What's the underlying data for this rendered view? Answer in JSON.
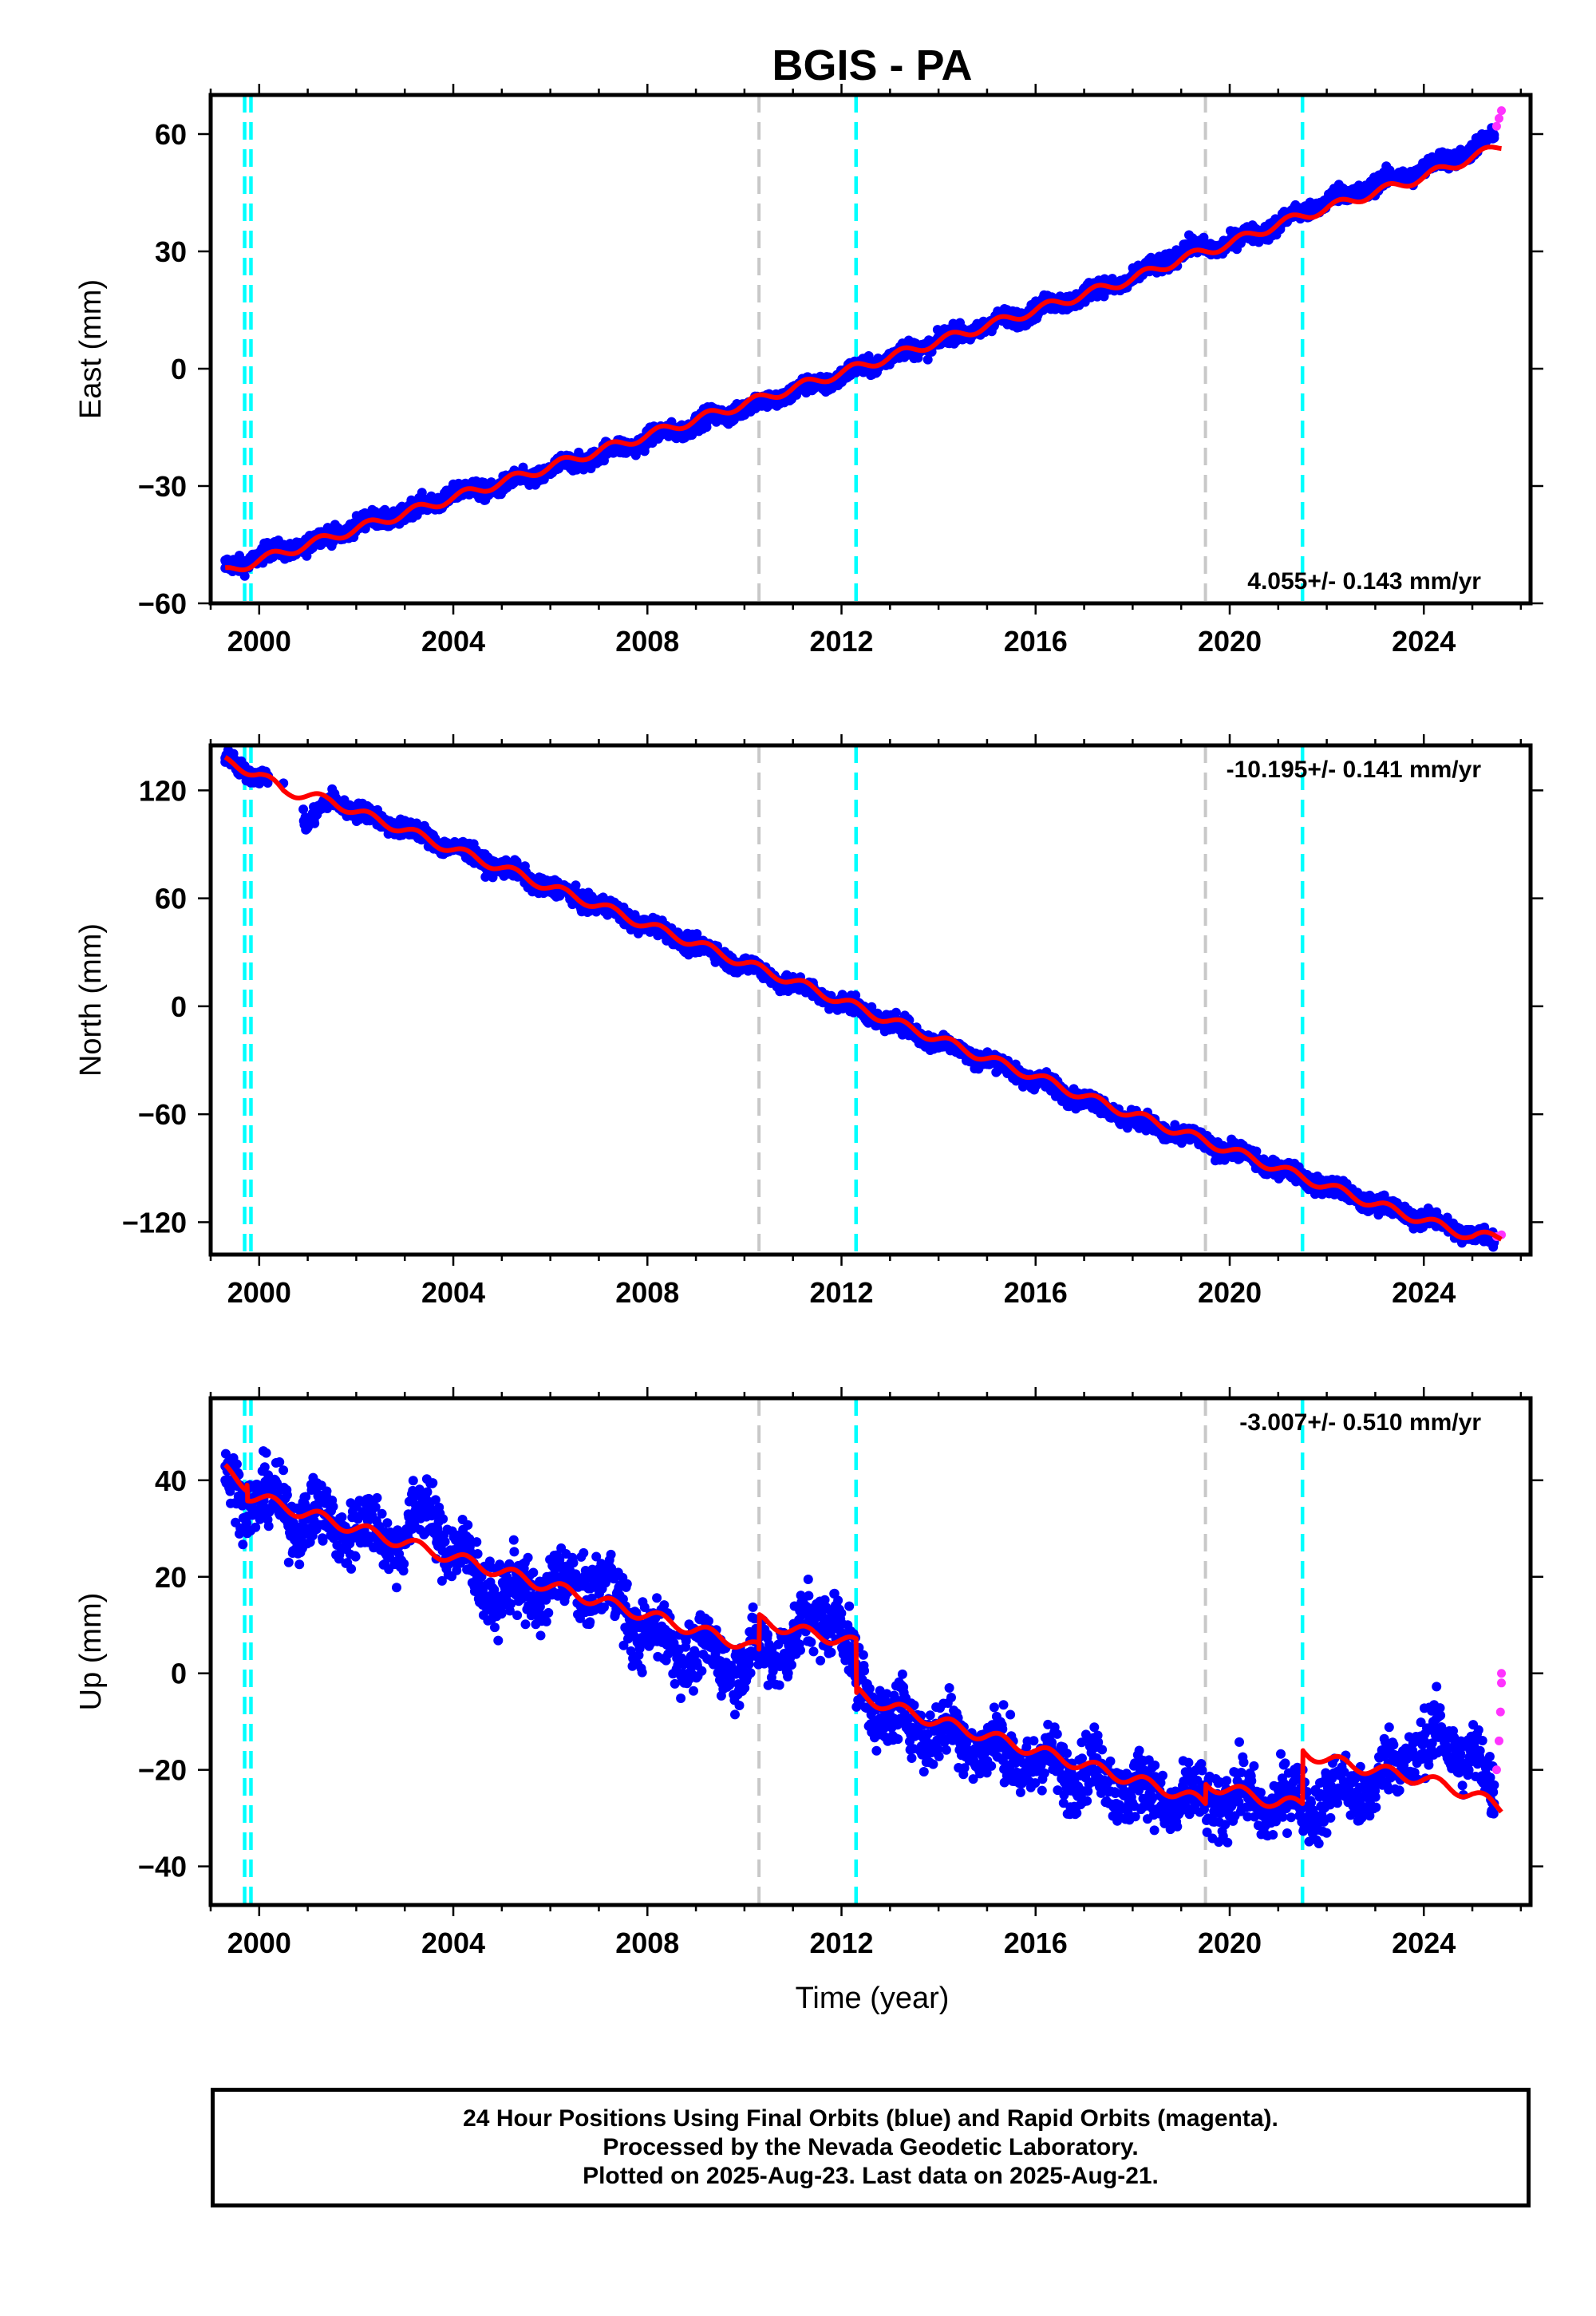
{
  "title": "BGIS - PA",
  "xlabel": "Time (year)",
  "colors": {
    "final_orbits": "#0000ff",
    "rapid_orbits": "#ff33ff",
    "model": "#ff0000",
    "equipment_change": "#c8c8c8",
    "earthquake": "#00ffff"
  },
  "events": {
    "gray_dashed": [
      2010.3,
      2019.5
    ],
    "cyan_dashed": [
      1999.7,
      1999.83,
      2012.3,
      2021.5
    ]
  },
  "chart_data": [
    {
      "type": "scatter",
      "name": "east",
      "ylabel": "East (mm)",
      "xlim": [
        1999.0,
        2026.2
      ],
      "ylim": [
        -60,
        70
      ],
      "x_ticks": [
        2000,
        2004,
        2008,
        2012,
        2016,
        2020,
        2024
      ],
      "y_ticks": [
        -60,
        -30,
        0,
        30,
        60
      ],
      "y_tick_labels": [
        "−60",
        "−30",
        "0",
        "30",
        "60"
      ],
      "rate_label": "4.055+/- 0.143 mm/yr",
      "rate_position": "bottom-right",
      "series": [
        {
          "series_role": "final",
          "style": "blue dots",
          "x": [
            1999.3,
            2000.0,
            2001.0,
            2002.0,
            2003.0,
            2004.0,
            2005.0,
            2006.0,
            2007.0,
            2008.0,
            2009.0,
            2010.0,
            2011.0,
            2012.0,
            2013.0,
            2014.0,
            2015.0,
            2016.0,
            2017.0,
            2018.0,
            2019.0,
            2020.0,
            2021.0,
            2022.0,
            2023.0,
            2024.0,
            2025.0,
            2025.45
          ],
          "y": [
            -51,
            -48,
            -45,
            -40,
            -37,
            -32,
            -30,
            -26,
            -22,
            -18,
            -14,
            -10,
            -6,
            -2,
            3,
            7,
            11,
            15,
            19,
            23,
            30,
            32,
            37,
            43,
            47,
            51,
            56,
            59
          ]
        },
        {
          "series_role": "rapid",
          "style": "magenta dots",
          "x": [
            2025.5,
            2025.55,
            2025.6
          ],
          "y": [
            62,
            64,
            66
          ]
        },
        {
          "series_role": "model",
          "style": "red line",
          "x": [
            1999.3,
            2000.0,
            2001.0,
            2002.0,
            2003.0,
            2004.0,
            2005.0,
            2006.0,
            2007.0,
            2008.0,
            2009.0,
            2010.0,
            2011.0,
            2012.0,
            2013.0,
            2014.0,
            2015.0,
            2016.0,
            2017.0,
            2018.0,
            2019.0,
            2020.0,
            2021.0,
            2022.0,
            2023.0,
            2024.0,
            2025.0,
            2025.6
          ],
          "y": [
            -52,
            -49,
            -45,
            -41,
            -37,
            -33,
            -29,
            -25,
            -21,
            -17,
            -13,
            -9,
            -5,
            -1,
            3,
            7,
            11,
            15,
            19,
            23,
            28,
            32,
            37,
            41,
            45,
            49,
            54,
            57
          ]
        }
      ]
    },
    {
      "type": "scatter",
      "name": "north",
      "ylabel": "North (mm)",
      "xlim": [
        1999.0,
        2026.2
      ],
      "ylim": [
        -138,
        145
      ],
      "x_ticks": [
        2000,
        2004,
        2008,
        2012,
        2016,
        2020,
        2024
      ],
      "y_ticks": [
        -120,
        -60,
        0,
        60,
        120
      ],
      "y_tick_labels": [
        "−120",
        "−60",
        "0",
        "60",
        "120"
      ],
      "rate_label": "-10.195+/- 0.141 mm/yr",
      "rate_position": "top-right",
      "series": [
        {
          "series_role": "final",
          "style": "blue dots",
          "x": [
            1999.3,
            1999.6,
            2000.0,
            2000.5,
            2001.0,
            2001.5,
            2002.0,
            2003.0,
            2004.0,
            2005.0,
            2006.0,
            2007.0,
            2008.0,
            2009.0,
            2010.0,
            2011.0,
            2012.0,
            2013.0,
            2014.0,
            2015.0,
            2016.0,
            2017.0,
            2018.0,
            2019.0,
            2020.0,
            2021.0,
            2022.0,
            2023.0,
            2024.0,
            2025.0,
            2025.45
          ],
          "y": [
            138,
            133,
            128,
            124,
            100,
            116,
            108,
            99,
            88,
            77,
            66,
            56,
            45,
            34,
            23,
            12,
            2,
            -9,
            -20,
            -30,
            -41,
            -52,
            -63,
            -72,
            -80,
            -90,
            -100,
            -110,
            -118,
            -127,
            -130
          ]
        },
        {
          "series_role": "rapid",
          "style": "magenta dots",
          "x": [
            2025.5,
            2025.6
          ],
          "y": [
            -128,
            -127
          ]
        },
        {
          "series_role": "model",
          "style": "red line",
          "x": [
            1999.3,
            2000.0,
            2000.5,
            2001.5,
            2002.0,
            2003.0,
            2004.0,
            2005.0,
            2006.0,
            2007.0,
            2008.0,
            2009.0,
            2010.0,
            2011.0,
            2012.0,
            2013.0,
            2014.0,
            2015.0,
            2016.0,
            2017.0,
            2018.0,
            2019.0,
            2020.0,
            2021.0,
            2022.0,
            2023.0,
            2024.0,
            2025.0,
            2025.6
          ],
          "y": [
            136,
            129,
            120,
            114,
            108,
            98,
            87,
            77,
            66,
            56,
            45,
            35,
            24,
            14,
            3,
            -8,
            -18,
            -29,
            -39,
            -50,
            -60,
            -70,
            -80,
            -90,
            -100,
            -110,
            -119,
            -128,
            -128
          ]
        }
      ]
    },
    {
      "type": "scatter",
      "name": "up",
      "ylabel": "Up (mm)",
      "xlim": [
        1999.0,
        2026.2
      ],
      "ylim": [
        -48,
        57
      ],
      "x_ticks": [
        2000,
        2004,
        2008,
        2012,
        2016,
        2020,
        2024
      ],
      "y_ticks": [
        -40,
        -20,
        0,
        20,
        40
      ],
      "y_tick_labels": [
        "−40",
        "−20",
        "0",
        "20",
        "40"
      ],
      "x_tick_labels_shown": true,
      "rate_label": "-3.007+/- 0.510 mm/yr",
      "rate_position": "top-right",
      "series": [
        {
          "series_role": "final",
          "style": "blue dots",
          "x": [
            1999.3,
            2000.0,
            2001.0,
            2002.0,
            2003.0,
            2003.5,
            2004.0,
            2005.0,
            2006.0,
            2007.0,
            2008.0,
            2009.0,
            2010.0,
            2011.0,
            2011.9,
            2012.3,
            2013.0,
            2014.0,
            2015.0,
            2016.0,
            2017.0,
            2018.0,
            2019.0,
            2020.0,
            2021.0,
            2022.0,
            2023.0,
            2024.0,
            2025.0,
            2025.45
          ],
          "y": [
            40,
            36,
            32,
            30,
            28,
            35,
            25,
            16,
            18,
            19,
            8,
            4,
            2,
            7,
            14,
            -2,
            -9,
            -12,
            -15,
            -19,
            -20,
            -24,
            -27,
            -26,
            -27,
            -26,
            -23,
            -14,
            -16,
            -27
          ]
        },
        {
          "series_role": "rapid",
          "style": "magenta dots",
          "x": [
            2025.5,
            2025.55,
            2025.58,
            2025.6,
            2025.6
          ],
          "y": [
            -20,
            -14,
            -8,
            -2,
            0
          ]
        },
        {
          "series_role": "model",
          "style": "red line",
          "x": [
            1999.3,
            1999.75,
            1999.76,
            2001.0,
            2002.0,
            2003.0,
            2004.0,
            2005.0,
            2006.0,
            2007.0,
            2008.0,
            2009.0,
            2010.0,
            2010.3,
            2010.31,
            2011.0,
            2012.0,
            2012.3,
            2012.31,
            2013.0,
            2014.0,
            2015.0,
            2016.0,
            2017.0,
            2018.0,
            2019.0,
            2019.5,
            2019.51,
            2020.0,
            2021.0,
            2021.5,
            2021.51,
            2022.0,
            2023.0,
            2024.0,
            2025.0,
            2025.6
          ],
          "y": [
            42,
            39,
            37,
            33,
            30,
            27,
            24,
            21,
            18,
            15,
            12,
            9,
            6,
            5,
            11,
            9,
            7,
            6,
            -4,
            -7,
            -10,
            -13,
            -16,
            -19,
            -22,
            -25,
            -27,
            -23,
            -24,
            -27,
            -27,
            -16,
            -18,
            -20,
            -22,
            -25,
            -28
          ]
        }
      ]
    }
  ],
  "caption": {
    "line1": "24 Hour Positions Using Final Orbits (blue) and Rapid Orbits (magenta).",
    "line2": "Processed by the Nevada Geodetic Laboratory.",
    "line3": "Plotted on 2025-Aug-23. Last data on 2025-Aug-21."
  }
}
